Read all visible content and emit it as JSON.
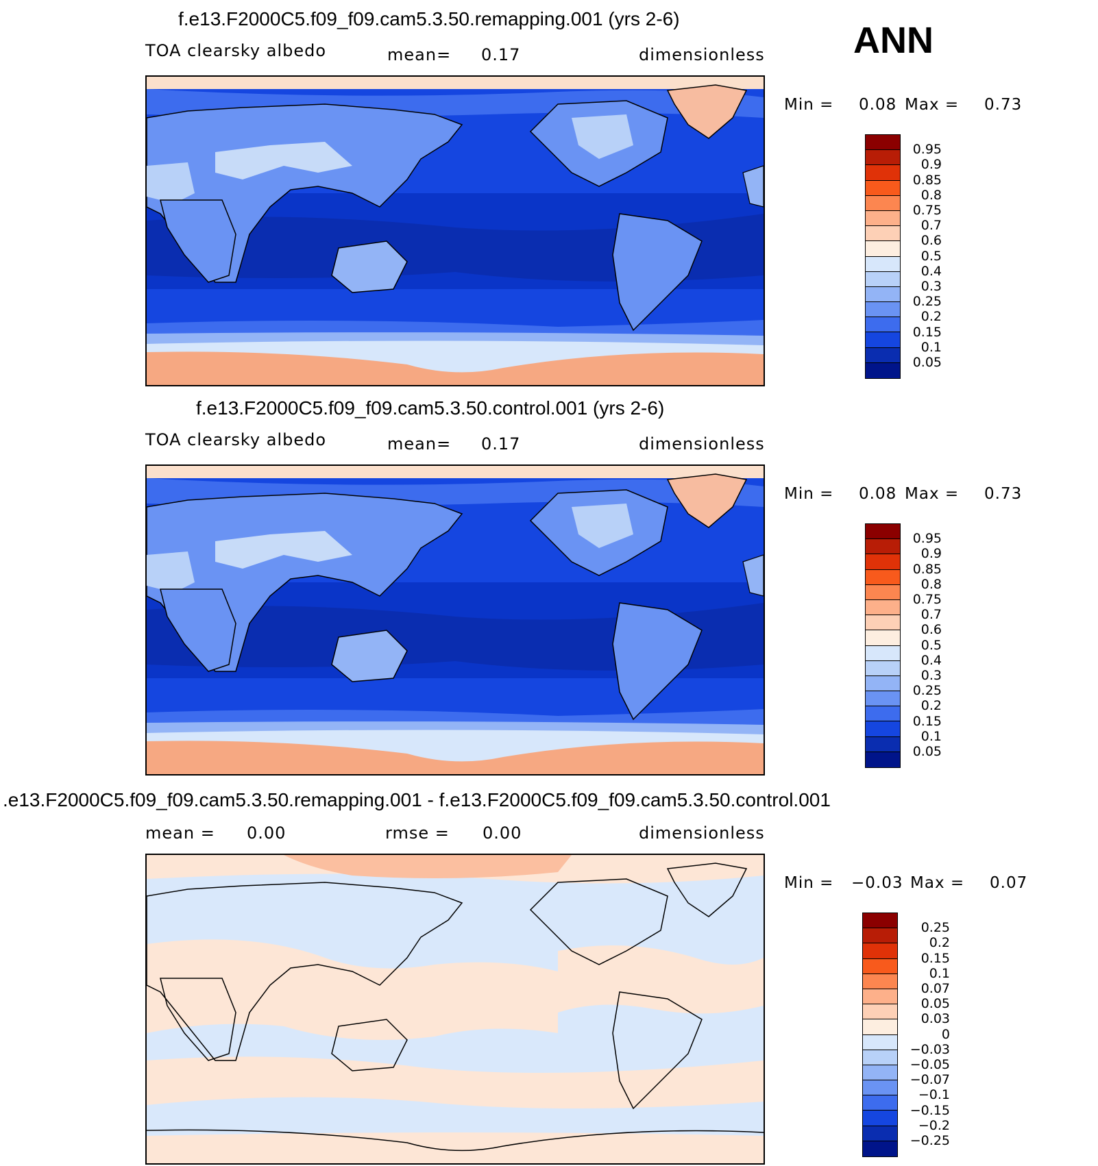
{
  "season": "ANN",
  "colors": {
    "ocean_deep": "#0a35c8",
    "ocean_mid": "#1546e0",
    "ocean_dark": "#0a2db0",
    "land_light": "#8fb2f5",
    "land_pale": "#c7dbf8",
    "ice": "#fbe0cc",
    "antarctic": "#f6a882",
    "greenland": "#f7bca0",
    "diff_pos": "#fde6d6",
    "diff_neg": "#d9e8fb",
    "diff_arctic": "#fbbfa0"
  },
  "panels": [
    {
      "title": "f.e13.F2000C5.f09_f09.cam5.3.50.remapping.001 (yrs 2-6)",
      "left": "TOA clearsky albedo",
      "middle_label": "mean=",
      "middle_value": "0.17",
      "right": "dimensionless",
      "min_label": "Min =",
      "min_value": "0.08",
      "max_label": "Max =",
      "max_value": "0.73",
      "colorbar_labels": [
        "0.95",
        "0.9",
        "0.85",
        "0.8",
        "0.75",
        "0.7",
        "0.6",
        "0.5",
        "0.4",
        "0.3",
        "0.25",
        "0.2",
        "0.15",
        "0.1",
        "0.05"
      ],
      "colorbar_colors": [
        "#8b0000",
        "#b81d06",
        "#e03208",
        "#f85a1c",
        "#fc8650",
        "#fdb08a",
        "#fdd0b6",
        "#fdeee0",
        "#d7e7fb",
        "#b8d1f8",
        "#93b4f6",
        "#6a93f3",
        "#3d6cee",
        "#1546e0",
        "#0a2db0",
        "#00148a"
      ]
    },
    {
      "title": "f.e13.F2000C5.f09_f09.cam5.3.50.control.001 (yrs 2-6)",
      "left": "TOA clearsky albedo",
      "middle_label": "mean=",
      "middle_value": "0.17",
      "right": "dimensionless",
      "min_label": "Min =",
      "min_value": "0.08",
      "max_label": "Max =",
      "max_value": "0.73",
      "colorbar_labels": [
        "0.95",
        "0.9",
        "0.85",
        "0.8",
        "0.75",
        "0.7",
        "0.6",
        "0.5",
        "0.4",
        "0.3",
        "0.25",
        "0.2",
        "0.15",
        "0.1",
        "0.05"
      ],
      "colorbar_colors": [
        "#8b0000",
        "#b81d06",
        "#e03208",
        "#f85a1c",
        "#fc8650",
        "#fdb08a",
        "#fdd0b6",
        "#fdeee0",
        "#d7e7fb",
        "#b8d1f8",
        "#93b4f6",
        "#6a93f3",
        "#3d6cee",
        "#1546e0",
        "#0a2db0",
        "#00148a"
      ]
    },
    {
      "title": ".e13.F2000C5.f09_f09.cam5.3.50.remapping.001 - f.e13.F2000C5.f09_f09.cam5.3.50.control.001",
      "left_label": "mean =",
      "left_value": "0.00",
      "middle_label": "rmse =",
      "middle_value": "0.00",
      "right": "dimensionless",
      "min_label": "Min =",
      "min_value": "−0.03",
      "max_label": "Max =",
      "max_value": "0.07",
      "colorbar_labels": [
        "0.25",
        "0.2",
        "0.15",
        "0.1",
        "0.07",
        "0.05",
        "0.03",
        "0",
        "−0.03",
        "−0.05",
        "−0.07",
        "−0.1",
        "−0.15",
        "−0.2",
        "−0.25"
      ],
      "colorbar_colors": [
        "#8b0000",
        "#b81d06",
        "#e03208",
        "#f85a1c",
        "#fc8650",
        "#fdb08a",
        "#fdd0b6",
        "#fdeee0",
        "#d7e7fb",
        "#b8d1f8",
        "#93b4f6",
        "#6a93f3",
        "#3d6cee",
        "#1546e0",
        "#0a2db0",
        "#00148a"
      ]
    }
  ]
}
